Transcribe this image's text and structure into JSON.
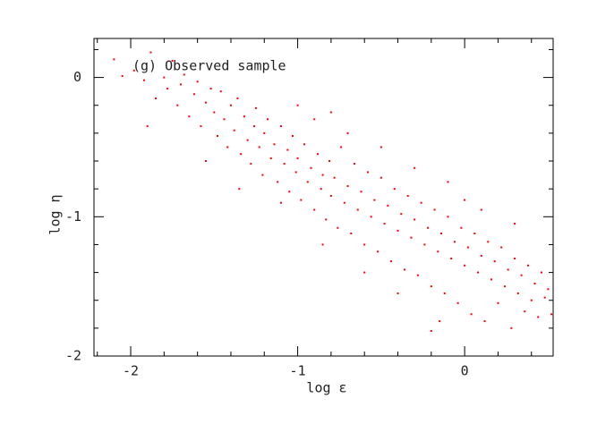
{
  "chart_data": {
    "type": "scatter",
    "x_label": "log ε",
    "y_label": "log η",
    "annotation": "(g) Observed sample",
    "color": "#ff0000",
    "xlim": [
      -2.22,
      0.53
    ],
    "ylim": [
      -2,
      0.28
    ],
    "xticks": [
      -2,
      -1,
      0
    ],
    "yticks": [
      -2,
      -1,
      0
    ],
    "xminorticks": [
      -2.2,
      -1.8,
      -1.6,
      -1.4,
      -1.2,
      -0.8,
      -0.6,
      -0.4,
      -0.2,
      0.2,
      0.4
    ],
    "yminorticks": [
      0.2,
      -0.2,
      -0.4,
      -0.6,
      -0.8,
      -1.2,
      -1.4,
      -1.6,
      -1.8
    ],
    "x": [
      -2.1,
      -2.05,
      -1.98,
      -1.92,
      -1.88,
      -1.85,
      -1.8,
      -1.78,
      -1.75,
      -1.72,
      -1.7,
      -1.68,
      -1.65,
      -1.62,
      -1.6,
      -1.58,
      -1.55,
      -1.52,
      -1.5,
      -1.48,
      -1.46,
      -1.44,
      -1.42,
      -1.4,
      -1.38,
      -1.36,
      -1.34,
      -1.32,
      -1.3,
      -1.28,
      -1.26,
      -1.25,
      -1.23,
      -1.21,
      -1.2,
      -1.18,
      -1.16,
      -1.14,
      -1.12,
      -1.1,
      -1.08,
      -1.06,
      -1.05,
      -1.03,
      -1.01,
      -1.0,
      -0.98,
      -0.96,
      -0.94,
      -0.92,
      -0.9,
      -0.88,
      -0.86,
      -0.85,
      -0.83,
      -0.81,
      -0.8,
      -0.78,
      -0.76,
      -0.74,
      -0.72,
      -0.7,
      -0.68,
      -0.66,
      -0.64,
      -0.62,
      -0.6,
      -0.58,
      -0.56,
      -0.54,
      -0.52,
      -0.5,
      -0.48,
      -0.46,
      -0.44,
      -0.42,
      -0.4,
      -0.38,
      -0.36,
      -0.34,
      -0.32,
      -0.3,
      -0.28,
      -0.26,
      -0.24,
      -0.22,
      -0.2,
      -0.18,
      -0.16,
      -0.14,
      -0.12,
      -0.1,
      -0.08,
      -0.06,
      -0.04,
      -0.02,
      0.0,
      0.02,
      0.04,
      0.06,
      0.08,
      0.1,
      0.12,
      0.14,
      0.16,
      0.18,
      0.2,
      0.22,
      0.24,
      0.26,
      0.28,
      0.3,
      0.32,
      0.34,
      0.36,
      0.38,
      0.4,
      0.42,
      0.44,
      0.46,
      0.48,
      0.5,
      0.52,
      -1.35,
      -1.1,
      -0.9,
      -0.7,
      -0.5,
      -0.3,
      -0.1,
      0.1,
      0.3,
      -0.85,
      -0.6,
      -0.4,
      -0.15,
      -1.55,
      -1.9,
      -1.0,
      -0.8,
      -0.2,
      0.0
    ],
    "values": [
      0.13,
      0.01,
      0.05,
      -0.02,
      0.18,
      -0.15,
      0.0,
      -0.08,
      0.12,
      -0.2,
      -0.05,
      0.02,
      -0.28,
      -0.12,
      -0.03,
      -0.35,
      -0.18,
      -0.08,
      -0.25,
      -0.42,
      -0.1,
      -0.3,
      -0.5,
      -0.2,
      -0.38,
      -0.15,
      -0.55,
      -0.28,
      -0.45,
      -0.62,
      -0.35,
      -0.22,
      -0.5,
      -0.7,
      -0.4,
      -0.3,
      -0.58,
      -0.48,
      -0.75,
      -0.35,
      -0.62,
      -0.52,
      -0.82,
      -0.42,
      -0.68,
      -0.58,
      -0.88,
      -0.48,
      -0.75,
      -0.65,
      -0.95,
      -0.55,
      -0.8,
      -0.7,
      -1.02,
      -0.6,
      -0.85,
      -0.72,
      -1.08,
      -0.5,
      -0.9,
      -0.78,
      -1.12,
      -0.62,
      -0.95,
      -0.82,
      -1.2,
      -0.68,
      -1.0,
      -0.88,
      -1.25,
      -0.72,
      -1.05,
      -0.92,
      -1.32,
      -0.8,
      -1.1,
      -0.98,
      -1.38,
      -0.85,
      -1.15,
      -1.02,
      -1.42,
      -0.9,
      -1.2,
      -1.08,
      -1.5,
      -0.95,
      -1.25,
      -1.12,
      -1.55,
      -1.0,
      -1.3,
      -1.18,
      -1.62,
      -1.08,
      -1.35,
      -1.22,
      -1.7,
      -1.12,
      -1.4,
      -1.28,
      -1.75,
      -1.18,
      -1.45,
      -1.32,
      -1.62,
      -1.22,
      -1.5,
      -1.38,
      -1.8,
      -1.3,
      -1.55,
      -1.42,
      -1.68,
      -1.35,
      -1.6,
      -1.48,
      -1.72,
      -1.4,
      -1.58,
      -1.52,
      -1.7,
      -0.8,
      -0.9,
      -0.3,
      -0.4,
      -0.5,
      -0.65,
      -0.75,
      -0.95,
      -1.05,
      -1.2,
      -1.4,
      -1.55,
      -1.75,
      -0.6,
      -0.35,
      -0.2,
      -0.25,
      -1.82,
      -0.88
    ]
  }
}
